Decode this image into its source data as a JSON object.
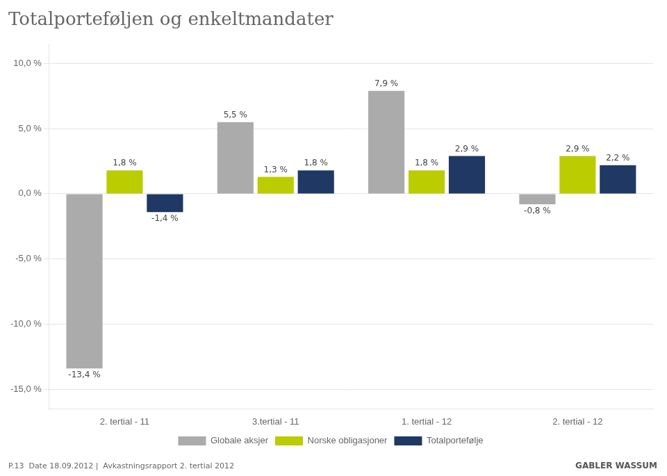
{
  "chart_data": {
    "type": "bar",
    "title": "Totalporteføljen og enkeltmandater",
    "categories": [
      "2. tertial - 11",
      "3.tertial - 11",
      "1. tertial - 12",
      "2. tertial - 12"
    ],
    "series": [
      {
        "name": "Globale aksjer",
        "color": "#ABABAB",
        "values": [
          -13.4,
          5.5,
          7.9,
          -0.8
        ],
        "value_labels": [
          "-13,4 %",
          "5,5 %",
          "7,9 %",
          "-0,8 %"
        ]
      },
      {
        "name": "Norske obligasjoner",
        "color": "#BBCC00",
        "values": [
          1.8,
          1.3,
          1.8,
          2.9
        ],
        "value_labels": [
          "1,8 %",
          "1,3 %",
          "1,8 %",
          "2,9 %"
        ]
      },
      {
        "name": "Totalportefølje",
        "color": "#1F3864",
        "values": [
          -1.4,
          1.8,
          2.9,
          2.2
        ],
        "value_labels": [
          "-1,4 %",
          "1,8 %",
          "2,9 %",
          "2,2 %"
        ]
      }
    ],
    "ylim": [
      -16.5,
      11.5
    ],
    "yticks": [
      {
        "value": -15.0,
        "label": "-15,0 %"
      },
      {
        "value": -10.0,
        "label": "-10,0 %"
      },
      {
        "value": -5.0,
        "label": "-5,0 %"
      },
      {
        "value": 0.0,
        "label": "0,0 %"
      },
      {
        "value": 5.0,
        "label": "5,0 %"
      },
      {
        "value": 10.0,
        "label": "10,0 %"
      }
    ],
    "grid": true,
    "legend": "bottom",
    "data_labels": true,
    "annotations": [
      "P.13  Date 18.09.2012 |  Avkastningsrapport 2. tertial 2012",
      "GABLER WASSUM"
    ]
  }
}
